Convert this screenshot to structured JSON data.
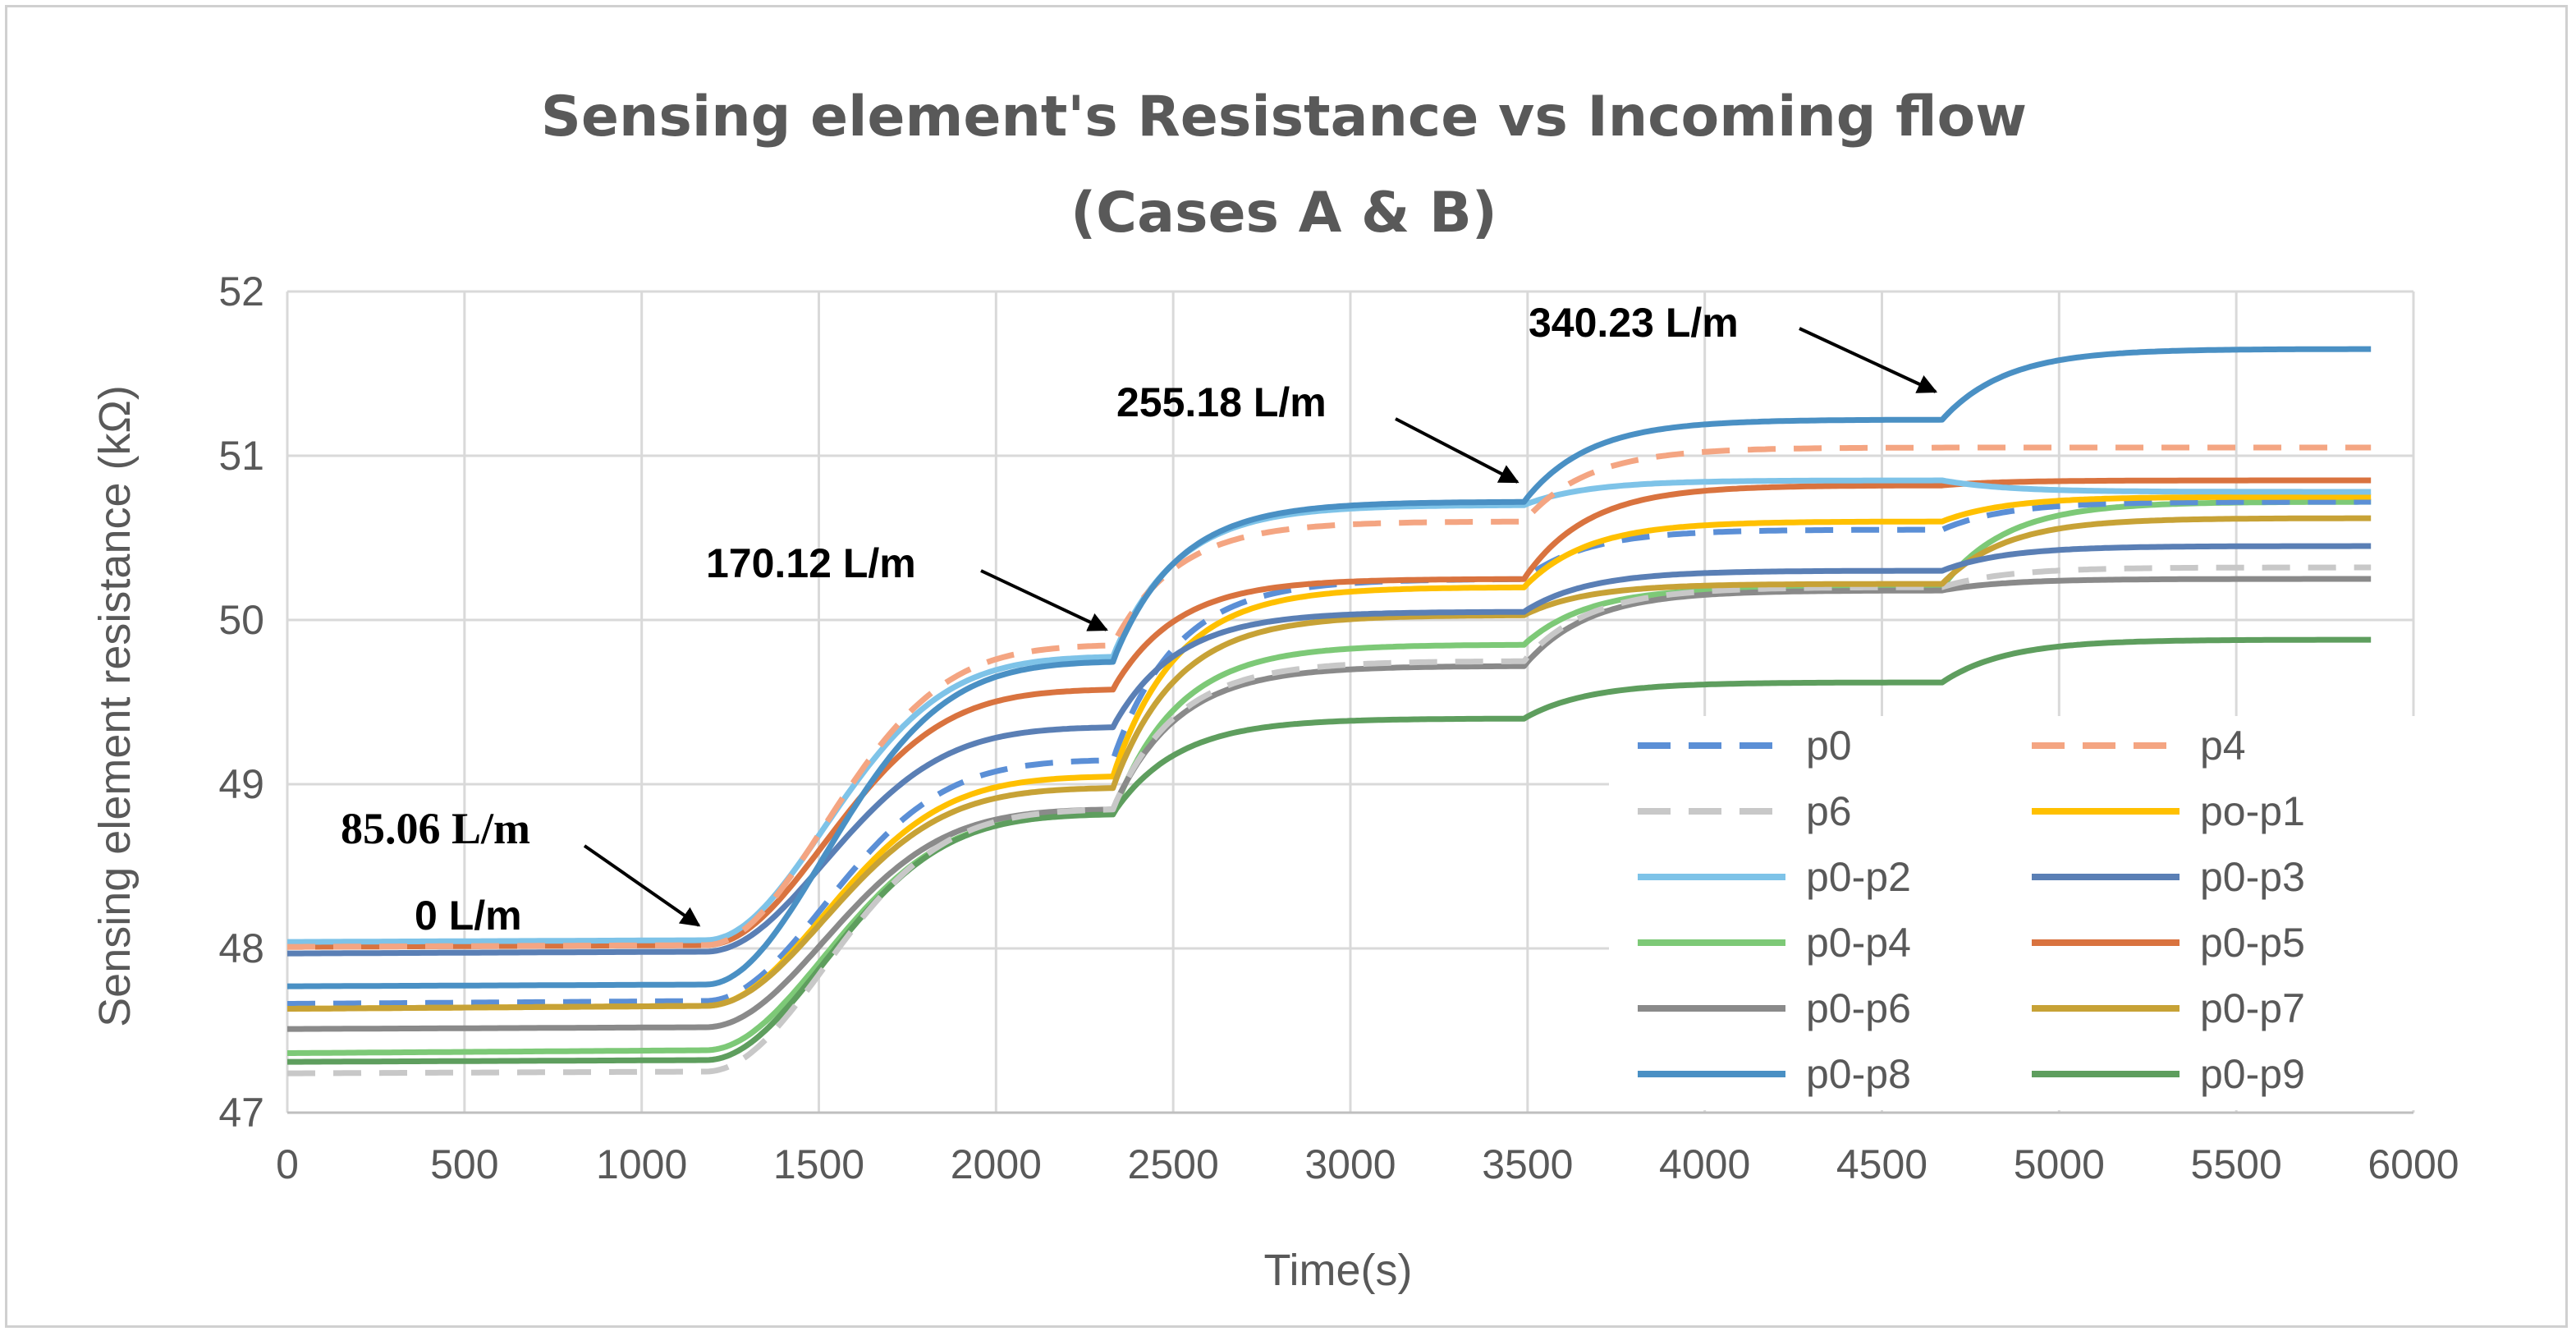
{
  "chart_data": {
    "type": "line",
    "title": [
      "Sensing element's Resistance vs Incoming flow",
      "(Cases A & B)"
    ],
    "xlabel": "Time(s)",
    "ylabel": "Sensing element resistance (kΩ)",
    "xlim": [
      0,
      6000
    ],
    "ylim": [
      47,
      52
    ],
    "xticks": [
      "0",
      "500",
      "1000",
      "1500",
      "2000",
      "2500",
      "3000",
      "3500",
      "4000",
      "4500",
      "5000",
      "5500",
      "6000"
    ],
    "yticks": [
      "47",
      "48",
      "49",
      "50",
      "51",
      "52"
    ],
    "grid": true,
    "legend_position": "bottom-right inside plot",
    "annotations": [
      {
        "text": "0 L/m",
        "x": 1180,
        "y": 48.0
      },
      {
        "text": "85.06 L/m",
        "x": 1180,
        "y": 48.1
      },
      {
        "text": "170.12 L/m",
        "x": 2330,
        "y": 49.9
      },
      {
        "text": "255.18 L/m",
        "x": 3490,
        "y": 50.8
      },
      {
        "text": "340.23 L/m",
        "x": 4670,
        "y": 51.35
      }
    ],
    "series": [
      {
        "name": "p0",
        "color": "#5b8fd6",
        "dash": true,
        "levels": [
          47.68,
          49.15,
          50.25,
          50.55,
          50.72
        ]
      },
      {
        "name": "p4",
        "color": "#f4a582",
        "dash": true,
        "levels": [
          48.02,
          49.85,
          50.6,
          51.05,
          51.05
        ]
      },
      {
        "name": "p6",
        "color": "#c8c8c8",
        "dash": true,
        "levels": [
          47.25,
          48.85,
          49.75,
          50.2,
          50.32
        ]
      },
      {
        "name": "po-p1",
        "color": "#ffc000",
        "dash": false,
        "levels": [
          47.65,
          49.05,
          50.2,
          50.6,
          50.75
        ]
      },
      {
        "name": "p0-p2",
        "color": "#7ec3e8",
        "dash": false,
        "levels": [
          48.05,
          49.78,
          50.7,
          50.85,
          50.78
        ]
      },
      {
        "name": "p0-p3",
        "color": "#5a7fb5",
        "dash": false,
        "levels": [
          47.98,
          49.35,
          50.05,
          50.3,
          50.45
        ]
      },
      {
        "name": "p0-p4",
        "color": "#7dc977",
        "dash": false,
        "levels": [
          47.38,
          48.82,
          49.85,
          50.2,
          50.72
        ]
      },
      {
        "name": "p0-p5",
        "color": "#d9733f",
        "dash": false,
        "levels": [
          48.02,
          49.58,
          50.25,
          50.82,
          50.85
        ]
      },
      {
        "name": "p0-p6",
        "color": "#8a8a8a",
        "dash": false,
        "levels": [
          47.52,
          48.85,
          49.72,
          50.18,
          50.25
        ]
      },
      {
        "name": "p0-p7",
        "color": "#c7a236",
        "dash": false,
        "levels": [
          47.65,
          48.98,
          50.03,
          50.22,
          50.62
        ]
      },
      {
        "name": "p0-p8",
        "color": "#4a90c4",
        "dash": false,
        "levels": [
          47.78,
          49.75,
          50.72,
          51.22,
          51.65
        ]
      },
      {
        "name": "p0-p9",
        "color": "#5e9e5e",
        "dash": false,
        "levels": [
          47.32,
          48.82,
          49.4,
          49.62,
          49.88
        ]
      }
    ],
    "step_times": [
      1180,
      2330,
      3490,
      4670,
      5880
    ]
  }
}
